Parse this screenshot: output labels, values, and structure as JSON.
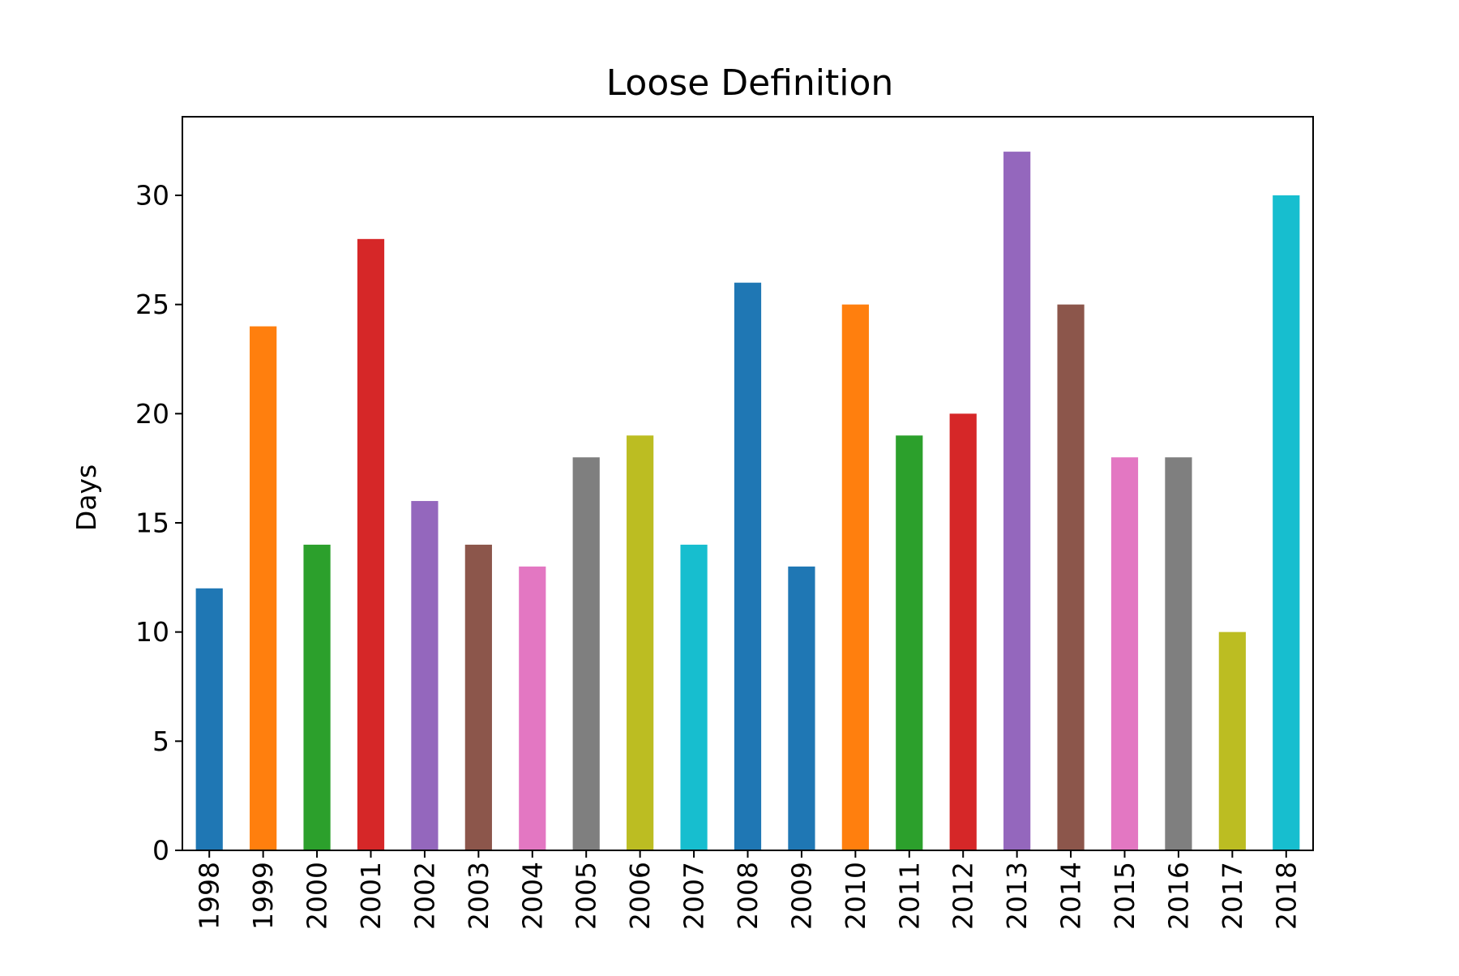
{
  "chart_data": {
    "type": "bar",
    "title": "Loose Definition",
    "xlabel": "",
    "ylabel": "Days",
    "categories": [
      "1998",
      "1999",
      "2000",
      "2001",
      "2002",
      "2003",
      "2004",
      "2005",
      "2006",
      "2007",
      "2008",
      "2009",
      "2010",
      "2011",
      "2012",
      "2013",
      "2014",
      "2015",
      "2016",
      "2017",
      "2018"
    ],
    "values": [
      12,
      24,
      14,
      28,
      16,
      14,
      13,
      18,
      19,
      14,
      26,
      13,
      25,
      19,
      20,
      32,
      25,
      18,
      18,
      10,
      30
    ],
    "colors": [
      "#1f77b4",
      "#ff7f0e",
      "#2ca02c",
      "#d62728",
      "#9467bd",
      "#8c564b",
      "#e377c2",
      "#7f7f7f",
      "#bcbd22",
      "#17becf",
      "#1f77b4",
      "#1f77b4",
      "#ff7f0e",
      "#2ca02c",
      "#d62728",
      "#9467bd",
      "#8c564b",
      "#e377c2",
      "#7f7f7f",
      "#bcbd22",
      "#17becf"
    ],
    "ylim": [
      0,
      33.6
    ],
    "yticks": [
      0,
      5,
      10,
      15,
      20,
      25,
      30
    ],
    "grid": false,
    "legend": "none"
  }
}
